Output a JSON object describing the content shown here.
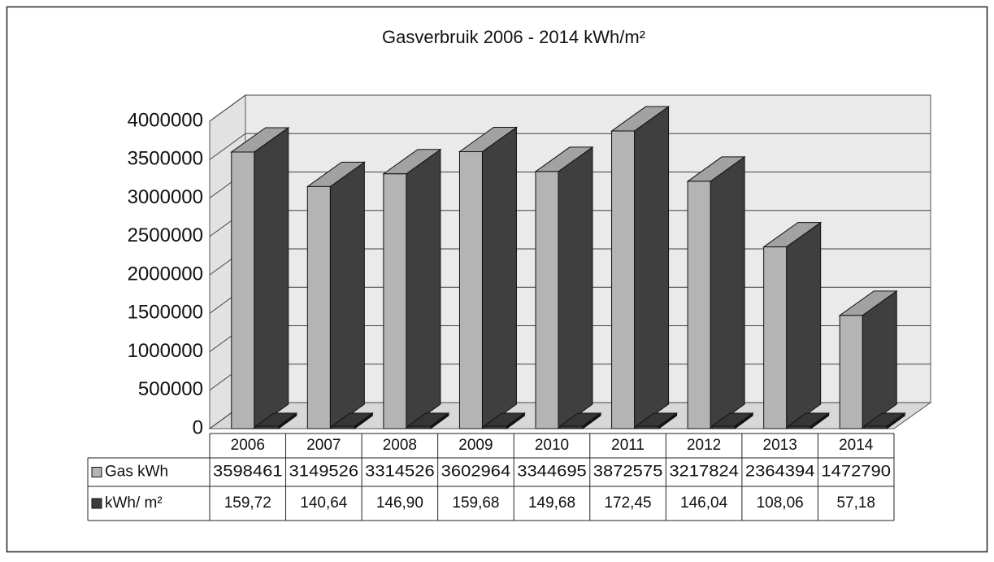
{
  "chart_data": {
    "type": "bar3d",
    "title": "Gasverbruik 2006 - 2014 kWh/m²",
    "categories": [
      "2006",
      "2007",
      "2008",
      "2009",
      "2010",
      "2011",
      "2012",
      "2013",
      "2014"
    ],
    "series": [
      {
        "name": "Gas kWh",
        "color": "#b4b4b4",
        "values": [
          3598461,
          3149526,
          3314526,
          3602964,
          3344695,
          3872575,
          3217824,
          2364394,
          1472790
        ]
      },
      {
        "name": "kWh/ m²",
        "color": "#3c3c3c",
        "values": [
          159.72,
          140.64,
          146.9,
          159.68,
          149.68,
          172.45,
          146.04,
          108.06,
          57.18
        ],
        "value_labels": [
          "159,72",
          "140,64",
          "146,90",
          "159,68",
          "149,68",
          "172,45",
          "146,04",
          "108,06",
          "57,18"
        ]
      }
    ],
    "ylim": [
      0,
      4000000
    ],
    "yticks": [
      0,
      500000,
      1000000,
      1500000,
      2000000,
      2500000,
      3000000,
      3500000,
      4000000
    ],
    "grid": true
  }
}
